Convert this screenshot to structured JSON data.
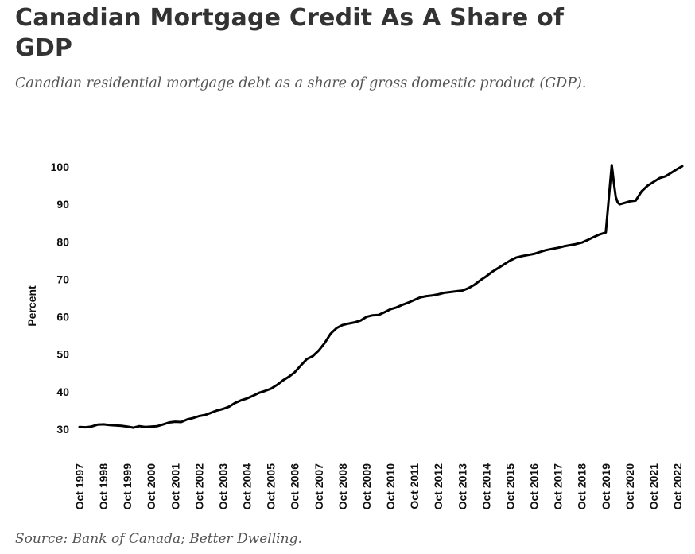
{
  "header": {
    "title": "Canadian Mortgage Credit As A Share of GDP",
    "subtitle": "Canadian residential mortgage debt as a share of gross domestic product (GDP)."
  },
  "footer": {
    "source": "Source: Bank of Canada; Better Dwelling."
  },
  "chart_data": {
    "type": "line",
    "title": "",
    "xlabel": "",
    "ylabel": "Percent",
    "ylim": [
      30,
      100
    ],
    "yticks": [
      30,
      40,
      50,
      60,
      70,
      80,
      90,
      100
    ],
    "xlim": [
      1997.75,
      2022.75
    ],
    "xticks": [
      "Oct 1997",
      "Oct 1998",
      "Oct 1999",
      "Oct 2000",
      "Oct 2001",
      "Oct 2002",
      "Oct 2003",
      "Oct 2004",
      "Oct 2005",
      "Oct 2006",
      "Oct 2007",
      "Oct 2008",
      "Oct 2009",
      "Oct 2010",
      "Oct 2011",
      "Oct 2012",
      "Oct 2013",
      "Oct 2014",
      "Oct 2015",
      "Oct 2016",
      "Oct 2017",
      "Oct 2018",
      "Oct 2019",
      "Oct 2020",
      "Oct 2021",
      "Oct 2022"
    ],
    "grid": false,
    "line_color": "#000000",
    "series": [
      {
        "x": [
          1997.75,
          1998.0,
          1998.25,
          1998.5,
          1998.75,
          1999.0,
          1999.25,
          1999.5,
          1999.75,
          2000.0,
          2000.25,
          2000.5,
          2000.75,
          2001.0,
          2001.25,
          2001.5,
          2001.75,
          2002.0,
          2002.25,
          2002.5,
          2002.75,
          2003.0,
          2003.25,
          2003.5,
          2003.75,
          2004.0,
          2004.25,
          2004.5,
          2004.75,
          2005.0,
          2005.25,
          2005.5,
          2005.75,
          2006.0,
          2006.25,
          2006.5,
          2006.75,
          2007.0,
          2007.25,
          2007.5,
          2007.75,
          2008.0,
          2008.25,
          2008.5,
          2008.75,
          2009.0,
          2009.25,
          2009.5,
          2009.75,
          2010.0,
          2010.25,
          2010.5,
          2010.75,
          2011.0,
          2011.25,
          2011.5,
          2011.75,
          2012.0,
          2012.25,
          2012.5,
          2012.75,
          2013.0,
          2013.25,
          2013.5,
          2013.75,
          2014.0,
          2014.25,
          2014.5,
          2014.75,
          2015.0,
          2015.25,
          2015.5,
          2015.75,
          2016.0,
          2016.25,
          2016.5,
          2016.75,
          2017.0,
          2017.25,
          2017.5,
          2017.75,
          2018.0,
          2018.25,
          2018.5,
          2018.75,
          2019.0,
          2019.25,
          2019.5,
          2019.75,
          2020.0,
          2020.083,
          2020.167,
          2020.25,
          2020.333,
          2020.5,
          2020.75,
          2021.0,
          2021.25,
          2021.5,
          2021.75,
          2022.0,
          2022.25,
          2022.5,
          2022.75,
          2022.95
        ],
        "values": [
          30.6,
          30.5,
          30.7,
          31.2,
          31.3,
          31.1,
          31.0,
          30.9,
          30.7,
          30.4,
          30.8,
          30.6,
          30.7,
          30.8,
          31.3,
          31.8,
          32.0,
          31.9,
          32.6,
          33.0,
          33.5,
          33.8,
          34.4,
          35.0,
          35.4,
          36.0,
          37.0,
          37.7,
          38.2,
          38.9,
          39.7,
          40.2,
          40.8,
          41.8,
          43.0,
          44.0,
          45.2,
          47.0,
          48.7,
          49.5,
          51.0,
          53.0,
          55.5,
          57.0,
          57.8,
          58.2,
          58.5,
          59.0,
          60.0,
          60.4,
          60.5,
          61.2,
          62.0,
          62.5,
          63.2,
          63.8,
          64.5,
          65.2,
          65.5,
          65.7,
          66.0,
          66.4,
          66.6,
          66.8,
          67.0,
          67.6,
          68.5,
          69.7,
          70.8,
          72.0,
          73.0,
          74.0,
          75.0,
          75.8,
          76.2,
          76.5,
          76.8,
          77.3,
          77.8,
          78.1,
          78.4,
          78.8,
          79.1,
          79.4,
          79.8,
          80.5,
          81.3,
          82.0,
          82.5,
          100.5,
          96.0,
          92.0,
          90.5,
          90.0,
          90.3,
          90.8,
          91.0,
          93.5,
          95.0,
          96.0,
          97.0,
          97.5,
          98.5,
          99.5,
          100.2
        ]
      }
    ]
  }
}
